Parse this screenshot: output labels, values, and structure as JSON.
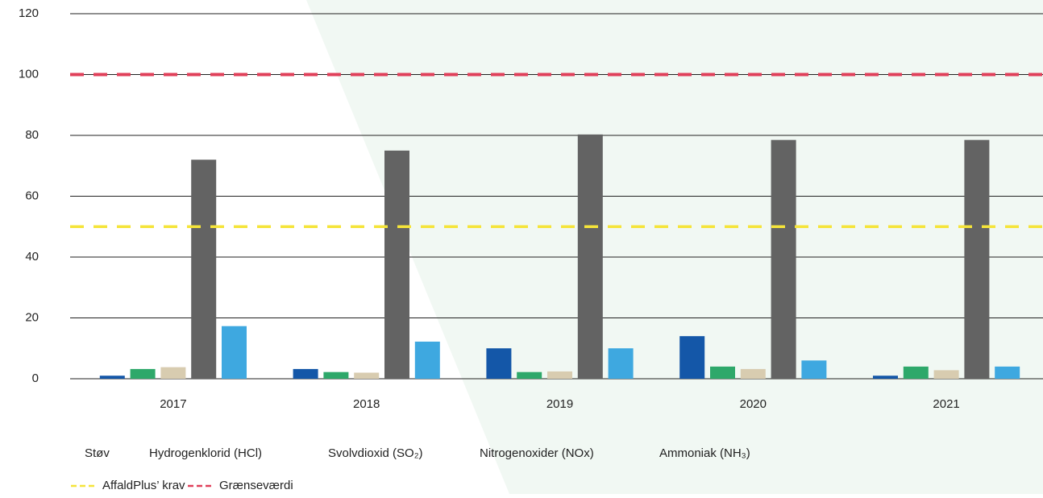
{
  "chart_data": {
    "type": "bar",
    "categories": [
      "2017",
      "2018",
      "2019",
      "2020",
      "2021"
    ],
    "series": [
      {
        "name": "Støv",
        "color": "#1457a8",
        "values": [
          1,
          3.2,
          10,
          14,
          1
        ]
      },
      {
        "name": "Hydrogenklorid (HCl)",
        "color": "#2ea86a",
        "values": [
          3.2,
          2.2,
          2.2,
          4,
          4
        ]
      },
      {
        "name": "Svolvdioxid (SO₂)",
        "color": "#d8ccb0",
        "values": [
          3.8,
          2,
          2.4,
          3.2,
          2.8
        ]
      },
      {
        "name": "Nitrogenoxider (NOx)",
        "color": "#636363",
        "values": [
          72,
          75,
          80.3,
          78.5,
          78.5
        ]
      },
      {
        "name": "Ammoniak (NH₃)",
        "color": "#3ea8e0",
        "values": [
          17.3,
          12.2,
          10,
          6,
          4
        ]
      }
    ],
    "reference_lines": [
      {
        "name": "AffaldPlus’ krav",
        "value": 50,
        "color": "#f5e43a"
      },
      {
        "name": "Grænseværdi",
        "value": 100,
        "color": "#e0405a"
      }
    ],
    "ylim": [
      0,
      120
    ],
    "yticks": [
      0,
      20,
      40,
      60,
      80,
      100,
      120
    ],
    "grid": true
  }
}
